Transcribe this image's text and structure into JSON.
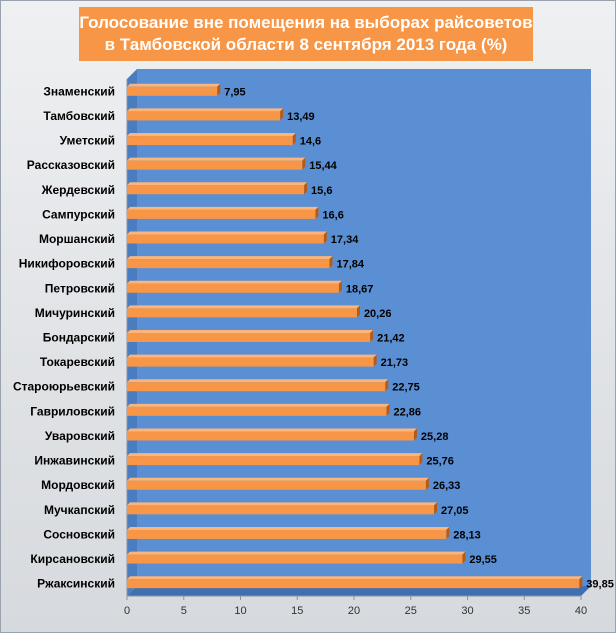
{
  "chart_data": {
    "type": "bar",
    "orientation": "horizontal",
    "title": "Голосование вне помещения на выборах райсоветов в Тамбовской области 8 сентября 2013 года (%)",
    "categories": [
      "Знаменский",
      "Тамбовский",
      "Уметский",
      "Рассказовский",
      "Жердевский",
      "Сампурский",
      "Моршанский",
      "Никифоровский",
      "Петровский",
      "Мичуринский",
      "Бондарский",
      "Токаревский",
      "Староюрьевский",
      "Гавриловский",
      "Уваровский",
      "Инжавинский",
      "Мордовский",
      "Мучкапский",
      "Сосновский",
      "Кирсановский",
      "Ржаксинский"
    ],
    "values": [
      7.95,
      13.49,
      14.6,
      15.44,
      15.6,
      16.6,
      17.34,
      17.84,
      18.67,
      20.26,
      21.42,
      21.73,
      22.75,
      22.86,
      25.28,
      25.76,
      26.33,
      27.05,
      28.13,
      29.55,
      39.85
    ],
    "value_labels": [
      "7,95",
      "13,49",
      "14,6",
      "15,44",
      "15,6",
      "16,6",
      "17,34",
      "17,84",
      "18,67",
      "20,26",
      "21,42",
      "21,73",
      "22,75",
      "22,86",
      "25,28",
      "25,76",
      "26,33",
      "27,05",
      "28,13",
      "29,55",
      "39,85"
    ],
    "xticks": [
      0,
      5,
      10,
      15,
      20,
      25,
      30,
      35,
      40
    ],
    "xlim": [
      0,
      40
    ],
    "xlabel": "",
    "ylabel": "",
    "grid": false,
    "legend": "none",
    "colors": {
      "bar": "#f79646",
      "bar_side": "#b85a14",
      "plot_bg": "#5b8fd4",
      "plot_floor": "#3f6fb0",
      "title_bg": "#f79646",
      "title_text": "#ffffff"
    }
  }
}
